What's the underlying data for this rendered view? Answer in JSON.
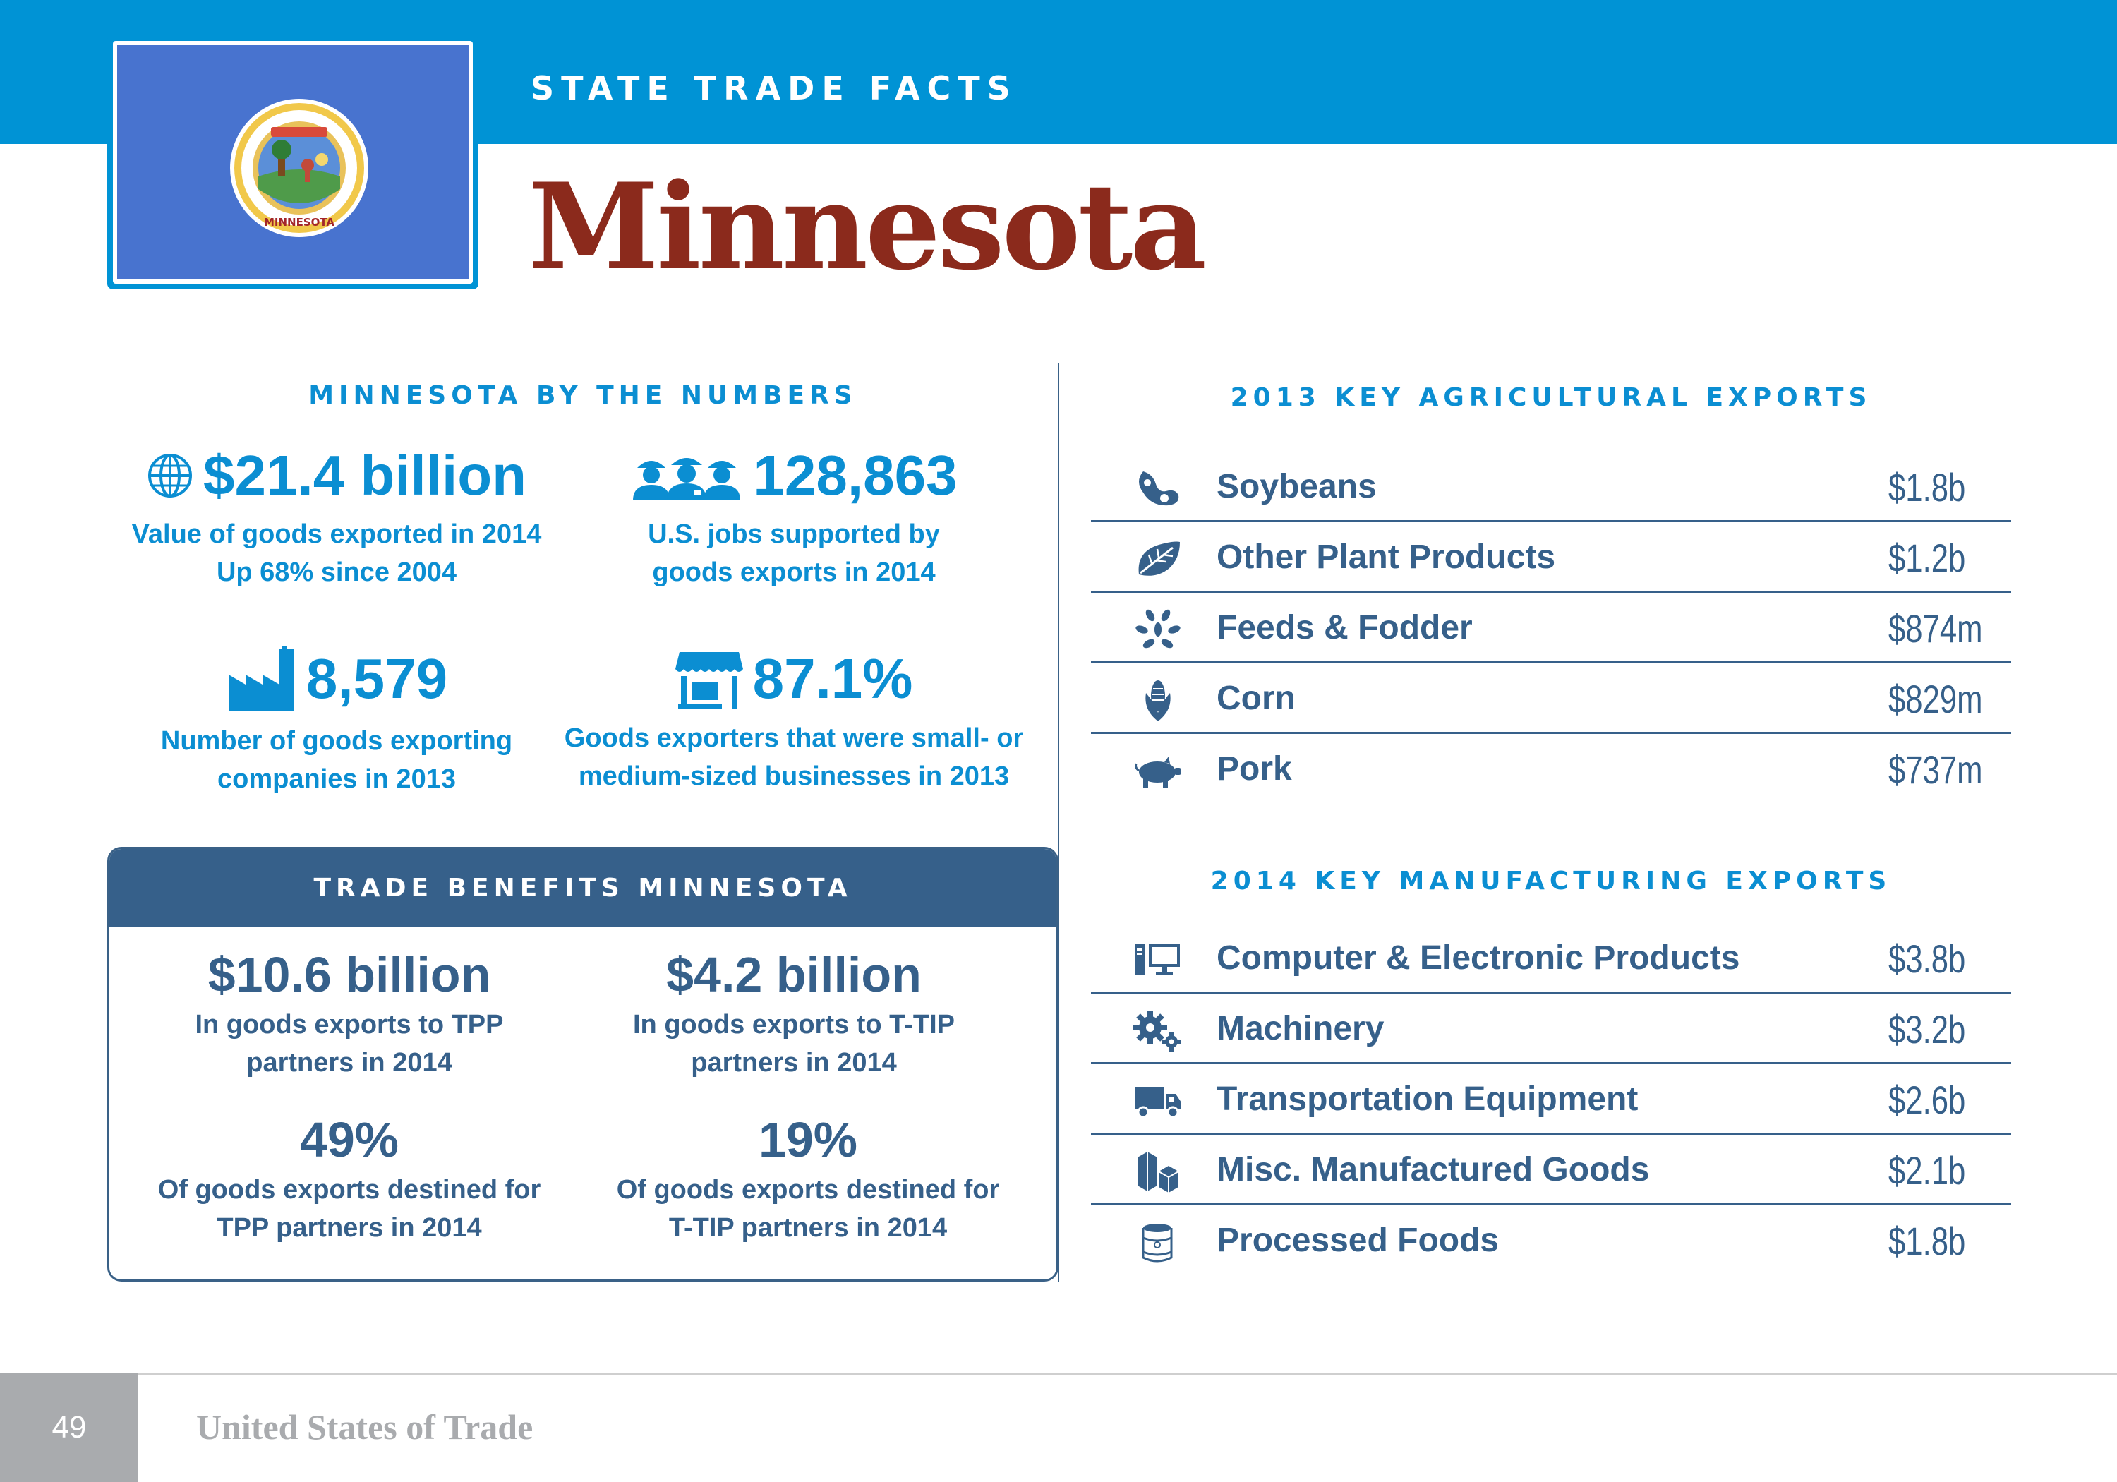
{
  "header": {
    "eyebrow": "STATE TRADE FACTS",
    "state_name": "Minnesota",
    "seal_text": "MINNESOTA"
  },
  "by_numbers": {
    "heading": "MINNESOTA BY THE NUMBERS",
    "stats": [
      {
        "icon": "globe-icon",
        "value": "$21.4 billion",
        "line1": "Value of goods exported in 2014",
        "line2": "Up 68% since 2004"
      },
      {
        "icon": "workers-icon",
        "value": "128,863",
        "line1": "U.S. jobs supported by",
        "line2": "goods exports in 2014"
      },
      {
        "icon": "factory-icon",
        "value": "8,579",
        "line1": "Number of goods exporting",
        "line2": "companies in 2013"
      },
      {
        "icon": "storefront-icon",
        "value": "87.1%",
        "line1": "Goods exporters that were small- or",
        "line2": "medium-sized businesses in 2013"
      }
    ]
  },
  "trade_benefits": {
    "heading": "TRADE BENEFITS MINNESOTA",
    "stats": [
      {
        "value": "$10.6 billion",
        "line1": "In goods exports to TPP",
        "line2": "partners in 2014"
      },
      {
        "value": "$4.2 billion",
        "line1": "In goods exports to T-TIP",
        "line2": "partners in 2014"
      },
      {
        "value": "49%",
        "line1": "Of goods exports destined for",
        "line2": "TPP partners in 2014"
      },
      {
        "value": "19%",
        "line1": "Of goods exports destined for",
        "line2": "T-TIP partners in 2014"
      }
    ]
  },
  "agricultural": {
    "heading": "2013 KEY AGRICULTURAL EXPORTS",
    "items": [
      {
        "icon": "soybean-icon",
        "name": "Soybeans",
        "value": "$1.8b"
      },
      {
        "icon": "leaf-icon",
        "name": "Other Plant Products",
        "value": "$1.2b"
      },
      {
        "icon": "grain-icon",
        "name": "Feeds & Fodder",
        "value": "$874m"
      },
      {
        "icon": "corn-icon",
        "name": "Corn",
        "value": "$829m"
      },
      {
        "icon": "pig-icon",
        "name": "Pork",
        "value": "$737m"
      }
    ]
  },
  "manufacturing": {
    "heading": "2014 KEY MANUFACTURING EXPORTS",
    "items": [
      {
        "icon": "computer-icon",
        "name": "Computer & Electronic Products",
        "value": "$3.8b"
      },
      {
        "icon": "gears-icon",
        "name": "Machinery",
        "value": "$3.2b"
      },
      {
        "icon": "truck-icon",
        "name": "Transportation Equipment",
        "value": "$2.6b"
      },
      {
        "icon": "boxes-icon",
        "name": "Misc. Manufactured Goods",
        "value": "$2.1b"
      },
      {
        "icon": "can-icon",
        "name": "Processed Foods",
        "value": "$1.8b"
      }
    ]
  },
  "footer": {
    "page_number": "49",
    "publication": "United States of Trade"
  },
  "colors": {
    "band_blue": "#0093d5",
    "stat_blue": "#0b8ed2",
    "navy": "#36608a",
    "title_red": "#8b2a1c",
    "flag_blue": "#4873cf",
    "footer_gray": "#a9abae"
  }
}
